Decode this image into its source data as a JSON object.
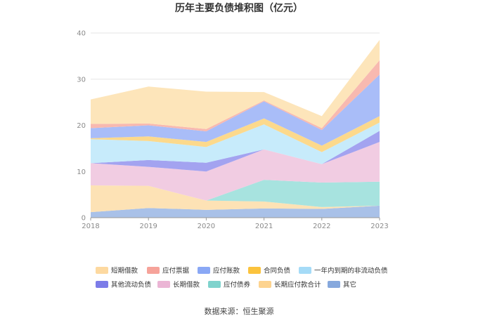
{
  "chart_data": {
    "type": "area",
    "stacked": true,
    "title": "历年主要负债堆积图（亿元）",
    "xlabel": "",
    "ylabel": "",
    "ylim": [
      0,
      40
    ],
    "yticks": [
      0,
      10,
      20,
      30,
      40
    ],
    "x": [
      "2018",
      "2019",
      "2020",
      "2021",
      "2022",
      "2023"
    ],
    "grid": true,
    "legend_position": "bottom",
    "series": [
      {
        "name": "其它",
        "color": "#a9c1e8",
        "values": [
          1.2,
          2.1,
          1.7,
          2.0,
          1.9,
          2.6
        ]
      },
      {
        "name": "长期应付款合计",
        "color": "#fde2b5",
        "values": [
          5.8,
          4.8,
          2.0,
          1.5,
          0.4,
          0.0
        ]
      },
      {
        "name": "应付债券",
        "color": "#a7e3df",
        "values": [
          0.0,
          0.0,
          0.0,
          4.7,
          5.3,
          5.2
        ]
      },
      {
        "name": "长期借款",
        "color": "#f1cce2",
        "values": [
          4.8,
          4.1,
          6.3,
          6.6,
          4.0,
          8.6
        ]
      },
      {
        "name": "其他流动负债",
        "color": "#a3a3f0",
        "values": [
          0.0,
          1.5,
          1.9,
          0.0,
          0.0,
          2.4
        ]
      },
      {
        "name": "一年内到期的非流动负债",
        "color": "#c7ebfb",
        "values": [
          5.2,
          4.1,
          3.4,
          5.4,
          2.6,
          1.8
        ]
      },
      {
        "name": "合同负债",
        "color": "#fcd98c",
        "values": [
          0.2,
          1.0,
          1.1,
          1.3,
          1.4,
          1.4
        ]
      },
      {
        "name": "应付账款",
        "color": "#a9bdf8",
        "values": [
          2.2,
          2.4,
          2.3,
          3.7,
          3.4,
          9.0
        ]
      },
      {
        "name": "应付票据",
        "color": "#f8b9b0",
        "values": [
          0.9,
          0.4,
          0.5,
          0.2,
          0.4,
          3.1
        ]
      },
      {
        "name": "短期借款",
        "color": "#fde5ba",
        "values": [
          5.3,
          8.0,
          8.1,
          1.8,
          2.6,
          4.4
        ]
      }
    ],
    "legend_order": [
      "短期借款",
      "应付票据",
      "应付账款",
      "合同负债",
      "一年内到期的非流动负债",
      "其他流动负债",
      "长期借款",
      "应付债券",
      "长期应付款合计",
      "其它"
    ],
    "legend_swatch_colors": {
      "短期借款": "#fdd9a0",
      "应付票据": "#f6a39a",
      "应付账款": "#8aa8f5",
      "合同负债": "#fbc33d",
      "一年内到期的非流动负债": "#a5dbf7",
      "其他流动负债": "#7c7ce8",
      "长期借款": "#ebb5d5",
      "应付债券": "#7fd3cd",
      "长期应付款合计": "#fdd38f",
      "其它": "#86a8dd"
    }
  },
  "footer": {
    "source": "数据来源：恒生聚源"
  }
}
